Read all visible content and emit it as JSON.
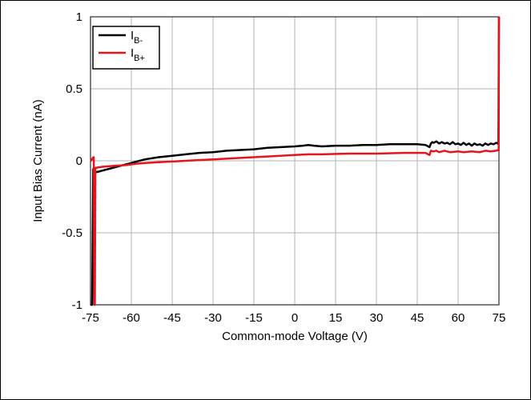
{
  "chart_data": {
    "type": "line",
    "title": "",
    "xlabel": "Common-mode Voltage (V)",
    "ylabel": "Input Bias Current (nA)",
    "xlim": [
      -75,
      75
    ],
    "ylim": [
      -1,
      1
    ],
    "xticks": [
      -75,
      -60,
      -45,
      -30,
      -15,
      0,
      15,
      30,
      45,
      60,
      75
    ],
    "xtick_labels": [
      "-75",
      "-60",
      "-45",
      "-30",
      "-15",
      "0",
      "15",
      "30",
      "45",
      "60",
      "75"
    ],
    "yticks": [
      -1,
      -0.5,
      0,
      0.5,
      1
    ],
    "ytick_labels": [
      "-1",
      "-0.5",
      "0",
      "0.5",
      "1"
    ],
    "grid": true,
    "legend_position": "top-left",
    "series": [
      {
        "name_main": "I",
        "name_sub": "B-",
        "color": "#000000",
        "x": [
          -75,
          -74.4,
          -74,
          -73.8,
          -73.6,
          -73.4,
          -73.2,
          -72,
          -70,
          -67,
          -64,
          -60,
          -55,
          -50,
          -45,
          -40,
          -35,
          -30,
          -25,
          -20,
          -15,
          -10,
          -5,
          0,
          3,
          5,
          7,
          10,
          15,
          20,
          25,
          30,
          35,
          40,
          45,
          48,
          49.5,
          50,
          50.5,
          51,
          52,
          53,
          54,
          55,
          56,
          57,
          58,
          59,
          60,
          61,
          62,
          63,
          64,
          65,
          66,
          67,
          68,
          69,
          70,
          71,
          72,
          73,
          74,
          74.5,
          74.8,
          75
        ],
        "y": [
          -1,
          -1,
          -0.06,
          -0.05,
          -0.08,
          -0.09,
          -0.08,
          -0.075,
          -0.065,
          -0.05,
          -0.035,
          -0.015,
          0.01,
          0.025,
          0.035,
          0.045,
          0.055,
          0.06,
          0.07,
          0.075,
          0.08,
          0.09,
          0.095,
          0.1,
          0.105,
          0.11,
          0.105,
          0.1,
          0.105,
          0.105,
          0.11,
          0.11,
          0.115,
          0.115,
          0.115,
          0.11,
          0.095,
          0.12,
          0.13,
          0.125,
          0.135,
          0.12,
          0.13,
          0.12,
          0.125,
          0.115,
          0.13,
          0.115,
          0.12,
          0.11,
          0.125,
          0.11,
          0.12,
          0.105,
          0.12,
          0.11,
          0.115,
          0.105,
          0.12,
          0.11,
          0.12,
          0.115,
          0.125,
          0.12,
          0.13,
          1
        ]
      },
      {
        "name_main": "I",
        "name_sub": "B+",
        "color": "#e8141b",
        "x": [
          -75,
          -74.6,
          -74.2,
          -73.8,
          -73.6,
          -73.4,
          -73.2,
          -72,
          -70,
          -66,
          -62,
          -58,
          -55,
          -50,
          -45,
          -40,
          -30,
          -20,
          -10,
          0,
          5,
          10,
          20,
          30,
          40,
          45,
          48,
          49.5,
          50,
          51,
          52,
          53,
          55,
          57,
          60,
          62,
          65,
          68,
          70,
          72,
          74,
          74.6,
          74.9,
          75
        ],
        "y": [
          0,
          0.005,
          0.02,
          0.025,
          -1,
          -1,
          -0.05,
          -0.045,
          -0.04,
          -0.035,
          -0.03,
          -0.02,
          -0.015,
          -0.01,
          -0.005,
          0,
          0.01,
          0.02,
          0.03,
          0.04,
          0.045,
          0.045,
          0.05,
          0.05,
          0.055,
          0.055,
          0.055,
          0.04,
          0.07,
          0.065,
          0.07,
          0.06,
          0.07,
          0.06,
          0.065,
          0.06,
          0.065,
          0.06,
          0.07,
          0.065,
          0.07,
          0.075,
          0.07,
          1
        ]
      }
    ]
  }
}
